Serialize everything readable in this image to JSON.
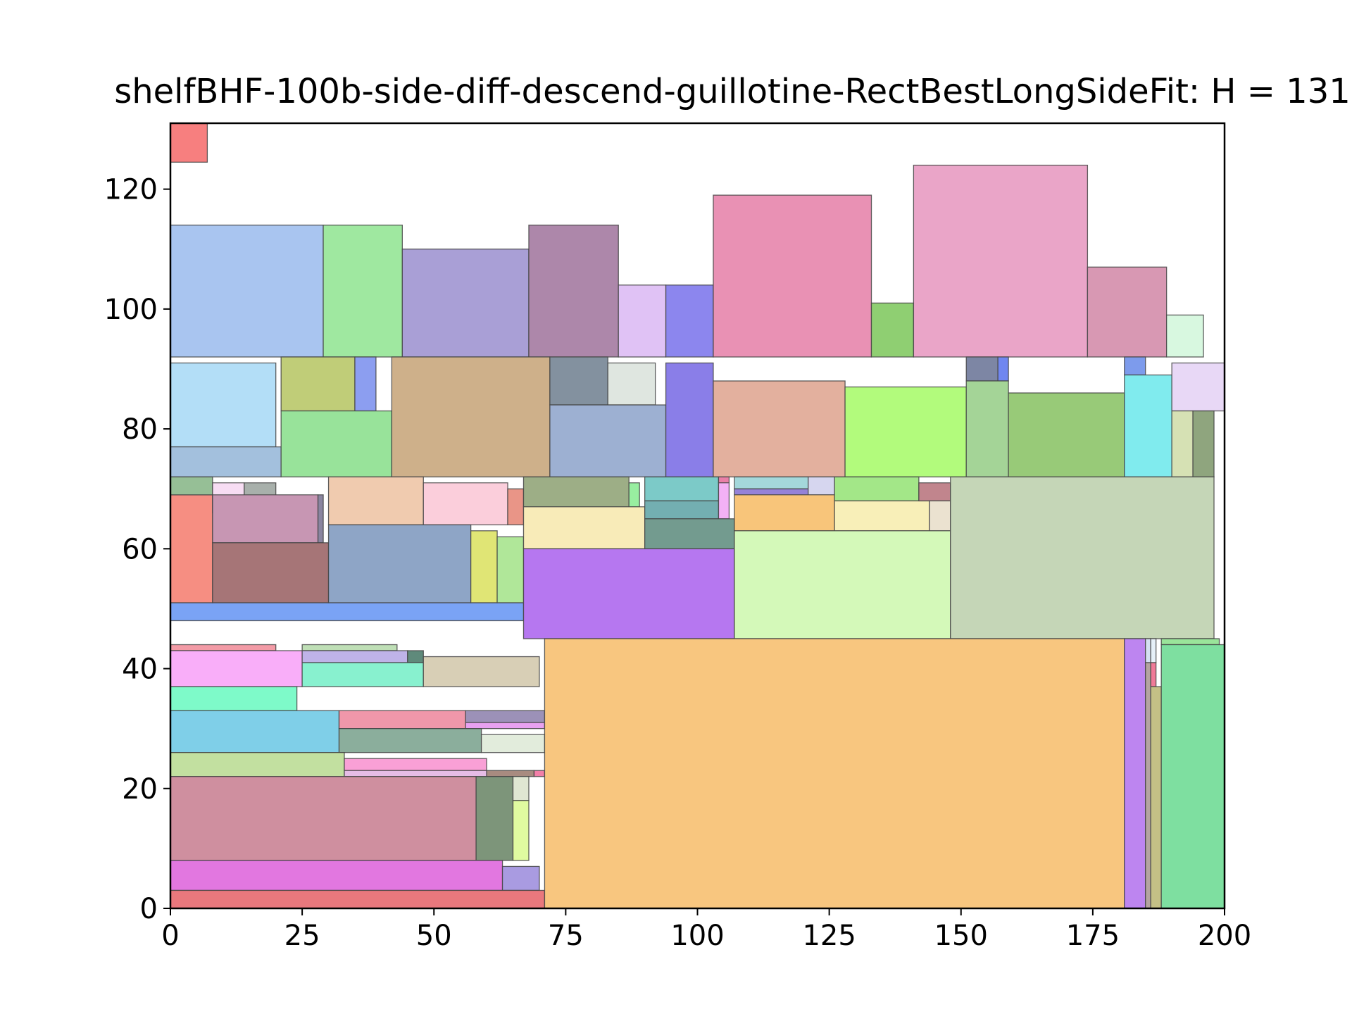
{
  "chart_data": {
    "type": "packing",
    "title": "shelfBHF-100b-side-diff-descend-guillotine-RectBestLongSideFit: H = 131",
    "xlim": [
      0,
      200
    ],
    "ylim": [
      0,
      131
    ],
    "xticks": [
      0,
      25,
      50,
      75,
      100,
      125,
      150,
      175,
      200
    ],
    "yticks": [
      0,
      20,
      40,
      60,
      80,
      100,
      120
    ],
    "xlabel": "",
    "ylabel": "",
    "grid": false,
    "rects": [
      {
        "x": 0,
        "y": 124.5,
        "w": 7,
        "h": 6.5,
        "color": "#f77f7f"
      },
      {
        "x": 0,
        "y": 92,
        "w": 29,
        "h": 22,
        "color": "#a9c5f0"
      },
      {
        "x": 29,
        "y": 92,
        "w": 15,
        "h": 22,
        "color": "#9fe8a0"
      },
      {
        "x": 44,
        "y": 92,
        "w": 24,
        "h": 18,
        "color": "#a99fd6"
      },
      {
        "x": 68,
        "y": 92,
        "w": 17,
        "h": 22,
        "color": "#ad87aa"
      },
      {
        "x": 85,
        "y": 92,
        "w": 9,
        "h": 12,
        "color": "#e0c2f5"
      },
      {
        "x": 94,
        "y": 92,
        "w": 9,
        "h": 12,
        "color": "#8c86ee"
      },
      {
        "x": 103,
        "y": 92,
        "w": 30,
        "h": 27,
        "color": "#e991b4"
      },
      {
        "x": 133,
        "y": 92,
        "w": 8,
        "h": 9,
        "color": "#8fcf72"
      },
      {
        "x": 141,
        "y": 92,
        "w": 33,
        "h": 32,
        "color": "#eaa5c8"
      },
      {
        "x": 174,
        "y": 92,
        "w": 15,
        "h": 15,
        "color": "#d898b3"
      },
      {
        "x": 189,
        "y": 92,
        "w": 7,
        "h": 7,
        "color": "#d8f8e0"
      },
      {
        "x": 0,
        "y": 77,
        "w": 20,
        "h": 14,
        "color": "#b3def7"
      },
      {
        "x": 0,
        "y": 72,
        "w": 21,
        "h": 5,
        "color": "#a3c0dd"
      },
      {
        "x": 21,
        "y": 83,
        "w": 14,
        "h": 9,
        "color": "#c0cd78"
      },
      {
        "x": 35,
        "y": 83,
        "w": 4,
        "h": 9,
        "color": "#8c9ef0"
      },
      {
        "x": 21,
        "y": 72,
        "w": 21,
        "h": 11,
        "color": "#98e39a"
      },
      {
        "x": 42,
        "y": 72,
        "w": 30,
        "h": 20,
        "color": "#ceb08a"
      },
      {
        "x": 72,
        "y": 84,
        "w": 11,
        "h": 8,
        "color": "#83919f"
      },
      {
        "x": 83,
        "y": 84,
        "w": 9,
        "h": 7,
        "color": "#dfe6e0"
      },
      {
        "x": 72,
        "y": 72,
        "w": 22,
        "h": 12,
        "color": "#9db0d2"
      },
      {
        "x": 94,
        "y": 72,
        "w": 9,
        "h": 19,
        "color": "#8a7ee8"
      },
      {
        "x": 103,
        "y": 72,
        "w": 25,
        "h": 16,
        "color": "#e3b09e"
      },
      {
        "x": 128,
        "y": 72,
        "w": 23,
        "h": 15,
        "color": "#b2fb7c"
      },
      {
        "x": 151,
        "y": 88,
        "w": 6,
        "h": 4,
        "color": "#7d86a4"
      },
      {
        "x": 157,
        "y": 88,
        "w": 2,
        "h": 4,
        "color": "#7087f0"
      },
      {
        "x": 151,
        "y": 72,
        "w": 8,
        "h": 16,
        "color": "#a4d497"
      },
      {
        "x": 159,
        "y": 72,
        "w": 22,
        "h": 14,
        "color": "#98ca78"
      },
      {
        "x": 181,
        "y": 89,
        "w": 4,
        "h": 3,
        "color": "#7d9bec"
      },
      {
        "x": 181,
        "y": 72,
        "w": 9,
        "h": 17,
        "color": "#80ebee"
      },
      {
        "x": 190,
        "y": 83,
        "w": 10,
        "h": 8,
        "color": "#e8d8f6"
      },
      {
        "x": 190,
        "y": 72,
        "w": 4,
        "h": 11,
        "color": "#d6e1b4"
      },
      {
        "x": 194,
        "y": 72,
        "w": 4,
        "h": 11,
        "color": "#8fa57e"
      },
      {
        "x": 0,
        "y": 48,
        "w": 67,
        "h": 3,
        "color": "#7aa3f5"
      },
      {
        "x": 0,
        "y": 51,
        "w": 8,
        "h": 18,
        "color": "#f68e82"
      },
      {
        "x": 0,
        "y": 69,
        "w": 8,
        "h": 3,
        "color": "#96bf96"
      },
      {
        "x": 8,
        "y": 66,
        "w": 6,
        "h": 5,
        "color": "#f7ddf3"
      },
      {
        "x": 14,
        "y": 65,
        "w": 6,
        "h": 6,
        "color": "#a8b0ab"
      },
      {
        "x": 8,
        "y": 61,
        "w": 20,
        "h": 8,
        "color": "#c796b3"
      },
      {
        "x": 28,
        "y": 61,
        "w": 1,
        "h": 8,
        "color": "#8a85a0"
      },
      {
        "x": 8,
        "y": 51,
        "w": 22,
        "h": 10,
        "color": "#a67577"
      },
      {
        "x": 30,
        "y": 64,
        "w": 18,
        "h": 8,
        "color": "#f0cbaf"
      },
      {
        "x": 48,
        "y": 64,
        "w": 16,
        "h": 7,
        "color": "#fbcedb"
      },
      {
        "x": 64,
        "y": 64,
        "w": 3,
        "h": 6,
        "color": "#e99587"
      },
      {
        "x": 30,
        "y": 51,
        "w": 27,
        "h": 13,
        "color": "#8ea5c6"
      },
      {
        "x": 57,
        "y": 51,
        "w": 5,
        "h": 12,
        "color": "#e0e575"
      },
      {
        "x": 62,
        "y": 51,
        "w": 5,
        "h": 11,
        "color": "#b0e799"
      },
      {
        "x": 67,
        "y": 67,
        "w": 20,
        "h": 5,
        "color": "#9dae86"
      },
      {
        "x": 87,
        "y": 67,
        "w": 2,
        "h": 4,
        "color": "#98eea0"
      },
      {
        "x": 67,
        "y": 60,
        "w": 23,
        "h": 7,
        "color": "#f8ebb8"
      },
      {
        "x": 90,
        "y": 68,
        "w": 14,
        "h": 4,
        "color": "#7ccac8"
      },
      {
        "x": 90,
        "y": 65,
        "w": 14,
        "h": 3,
        "color": "#73afb1"
      },
      {
        "x": 104,
        "y": 71,
        "w": 2,
        "h": 1,
        "color": "#e97fa7"
      },
      {
        "x": 104,
        "y": 65,
        "w": 2,
        "h": 6,
        "color": "#f3b1f5"
      },
      {
        "x": 90,
        "y": 60,
        "w": 17,
        "h": 5,
        "color": "#739b8f"
      },
      {
        "x": 67,
        "y": 45,
        "w": 40,
        "h": 15,
        "color": "#b677f0"
      },
      {
        "x": 107,
        "y": 70,
        "w": 14,
        "h": 2,
        "color": "#a4d8db"
      },
      {
        "x": 107,
        "y": 69,
        "w": 14,
        "h": 1,
        "color": "#9582d8"
      },
      {
        "x": 121,
        "y": 69,
        "w": 5,
        "h": 3,
        "color": "#d6d6ef"
      },
      {
        "x": 107,
        "y": 63,
        "w": 19,
        "h": 6,
        "color": "#f8c57a"
      },
      {
        "x": 126,
        "y": 68,
        "w": 16,
        "h": 4,
        "color": "#a3e788"
      },
      {
        "x": 126,
        "y": 63,
        "w": 18,
        "h": 5,
        "color": "#f8efb8"
      },
      {
        "x": 142,
        "y": 68,
        "w": 6,
        "h": 3,
        "color": "#c1858d"
      },
      {
        "x": 144,
        "y": 63,
        "w": 4,
        "h": 5,
        "color": "#ebe2d0"
      },
      {
        "x": 107,
        "y": 45,
        "w": 41,
        "h": 18,
        "color": "#d4f9b9"
      },
      {
        "x": 148,
        "y": 45,
        "w": 50,
        "h": 27,
        "color": "#c5d6b7"
      },
      {
        "x": 0,
        "y": 43,
        "w": 20,
        "h": 1,
        "color": "#f39ba6"
      },
      {
        "x": 0,
        "y": 37,
        "w": 25,
        "h": 6,
        "color": "#f9aef9"
      },
      {
        "x": 25,
        "y": 43,
        "w": 18,
        "h": 1,
        "color": "#bfdfb6"
      },
      {
        "x": 25,
        "y": 41,
        "w": 20,
        "h": 2,
        "color": "#bfb3e8"
      },
      {
        "x": 45,
        "y": 41,
        "w": 3,
        "h": 2,
        "color": "#5f8a7b"
      },
      {
        "x": 25,
        "y": 37,
        "w": 23,
        "h": 4,
        "color": "#88f1cf"
      },
      {
        "x": 48,
        "y": 37,
        "w": 22,
        "h": 5,
        "color": "#d8cfb6"
      },
      {
        "x": 0,
        "y": 33,
        "w": 24,
        "h": 4,
        "color": "#7efac9"
      },
      {
        "x": 0,
        "y": 26,
        "w": 32,
        "h": 7,
        "color": "#7fcfe8"
      },
      {
        "x": 32,
        "y": 30,
        "w": 24,
        "h": 3,
        "color": "#f097aa"
      },
      {
        "x": 56,
        "y": 31,
        "w": 15,
        "h": 2,
        "color": "#9c91b8"
      },
      {
        "x": 56,
        "y": 30,
        "w": 15,
        "h": 1,
        "color": "#e8a1f0"
      },
      {
        "x": 32,
        "y": 26,
        "w": 27,
        "h": 4,
        "color": "#8bae9c"
      },
      {
        "x": 59,
        "y": 26,
        "w": 12,
        "h": 3,
        "color": "#e2ecdc"
      },
      {
        "x": 0,
        "y": 22,
        "w": 33,
        "h": 4,
        "color": "#c2e0a0"
      },
      {
        "x": 33,
        "y": 23,
        "w": 27,
        "h": 2,
        "color": "#f9a0d6"
      },
      {
        "x": 33,
        "y": 22,
        "w": 27,
        "h": 1,
        "color": "#e6bce6"
      },
      {
        "x": 60,
        "y": 22,
        "w": 9,
        "h": 1,
        "color": "#a88b80"
      },
      {
        "x": 69,
        "y": 22,
        "w": 2,
        "h": 1,
        "color": "#f27fa8"
      },
      {
        "x": 0,
        "y": 8,
        "w": 58,
        "h": 14,
        "color": "#cf8f9f"
      },
      {
        "x": 58,
        "y": 8,
        "w": 7,
        "h": 14,
        "color": "#7d957a"
      },
      {
        "x": 65,
        "y": 18,
        "w": 3,
        "h": 4,
        "color": "#dfe6d2"
      },
      {
        "x": 65,
        "y": 8,
        "w": 3,
        "h": 10,
        "color": "#e0fba0"
      },
      {
        "x": 0,
        "y": 3,
        "w": 63,
        "h": 5,
        "color": "#e277e0"
      },
      {
        "x": 63,
        "y": 3,
        "w": 7,
        "h": 4,
        "color": "#a99be1"
      },
      {
        "x": 0,
        "y": 0,
        "w": 71,
        "h": 3,
        "color": "#e9787d"
      },
      {
        "x": 71,
        "y": 0,
        "w": 110,
        "h": 45,
        "color": "#f8c67f"
      },
      {
        "x": 181,
        "y": 0,
        "w": 4,
        "h": 45,
        "color": "#bd85f0"
      },
      {
        "x": 185,
        "y": 41,
        "w": 1,
        "h": 4,
        "color": "#d5e0f2"
      },
      {
        "x": 185,
        "y": 0,
        "w": 1,
        "h": 41,
        "color": "#b4a4a0"
      },
      {
        "x": 186,
        "y": 41,
        "w": 1,
        "h": 4,
        "color": "#e6f0f8"
      },
      {
        "x": 186,
        "y": 37,
        "w": 1,
        "h": 4,
        "color": "#f07a98"
      },
      {
        "x": 186,
        "y": 0,
        "w": 2,
        "h": 37,
        "color": "#c4c086"
      },
      {
        "x": 188,
        "y": 44,
        "w": 11,
        "h": 1,
        "color": "#9ae49a"
      },
      {
        "x": 188,
        "y": 0,
        "w": 12,
        "h": 44,
        "color": "#7edfa0"
      }
    ]
  }
}
